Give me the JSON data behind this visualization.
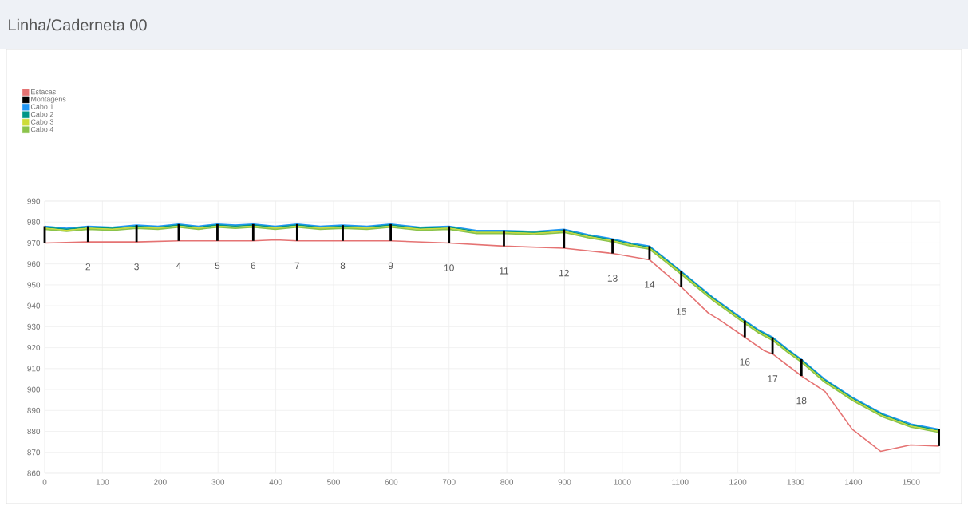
{
  "chart_data": {
    "type": "line",
    "title": "Linha/Caderneta 00",
    "xlim": [
      0,
      1550
    ],
    "ylim": [
      860,
      990
    ],
    "xticks": [
      0,
      100,
      200,
      300,
      400,
      500,
      600,
      700,
      800,
      900,
      1000,
      1100,
      1200,
      1300,
      1400,
      1500
    ],
    "yticks": [
      860,
      870,
      880,
      890,
      900,
      910,
      920,
      930,
      940,
      950,
      960,
      970,
      980,
      990
    ],
    "grid": true,
    "legend": "top left",
    "series": [
      {
        "name": "Estacas",
        "color": "#e57373",
        "x": [
          0,
          75,
          159,
          232,
          299,
          361,
          400,
          437,
          516,
          599,
          700,
          795,
          899,
          983,
          1047,
          1102,
          1149,
          1167,
          1212,
          1246,
          1260,
          1310,
          1351,
          1398,
          1447,
          1499,
          1548
        ],
        "values": [
          970,
          970.5,
          970.5,
          971,
          971,
          971,
          971.5,
          971,
          971,
          971,
          970,
          968.5,
          967.5,
          965,
          962,
          949,
          936.5,
          933.5,
          925,
          918.5,
          917,
          906.5,
          899,
          881,
          870.5,
          873.5,
          873
        ]
      },
      {
        "name": "Montagens",
        "type": "bar",
        "color": "#000000",
        "x": [
          0,
          75,
          159,
          232,
          299,
          361,
          437,
          516,
          599,
          700,
          795,
          899,
          983,
          1047,
          1102,
          1212,
          1260,
          1310,
          1548
        ],
        "base": [
          970,
          970.5,
          970.5,
          971,
          971,
          971,
          971,
          971,
          971,
          970,
          968.5,
          967.5,
          965,
          962,
          949,
          925,
          917,
          906.5,
          873
        ],
        "values": [
          8,
          7.5,
          8,
          8,
          8,
          8,
          8,
          7.5,
          8,
          8,
          7.5,
          9,
          7,
          6.5,
          7.5,
          8,
          8,
          8,
          8
        ]
      },
      {
        "name": "Cabo 1",
        "color": "#2196f3",
        "x": [
          0,
          38,
          75,
          117,
          159,
          196,
          232,
          266,
          299,
          330,
          361,
          399,
          437,
          477,
          516,
          558,
          599,
          650,
          700,
          748,
          795,
          847,
          899,
          941,
          983,
          1015,
          1047,
          1075,
          1102,
          1157,
          1212,
          1236,
          1260,
          1285,
          1310,
          1350,
          1400,
          1450,
          1500,
          1548
        ],
        "values": [
          978,
          977,
          978,
          977.5,
          978.5,
          978,
          979,
          978,
          979,
          978.5,
          979,
          978,
          979,
          978,
          978.5,
          978,
          979,
          977.5,
          978,
          976,
          976,
          975.5,
          976.5,
          974,
          972,
          970,
          968.5,
          962.5,
          956.5,
          944,
          933,
          928.5,
          925,
          919.5,
          914.5,
          905,
          896,
          888.5,
          883.5,
          881
        ]
      },
      {
        "name": "Cabo 2",
        "color": "#009688",
        "x": [
          0,
          38,
          75,
          117,
          159,
          196,
          232,
          266,
          299,
          330,
          361,
          399,
          437,
          477,
          516,
          558,
          599,
          650,
          700,
          748,
          795,
          847,
          899,
          941,
          983,
          1015,
          1047,
          1075,
          1102,
          1157,
          1212,
          1236,
          1260,
          1285,
          1310,
          1350,
          1400,
          1450,
          1500,
          1548
        ],
        "values": [
          977.5,
          976.5,
          977.5,
          977,
          978,
          977.5,
          978.5,
          977.5,
          978.5,
          978,
          978.5,
          977.5,
          978.5,
          977.5,
          978,
          977.5,
          978.5,
          977,
          977.5,
          975.5,
          975.5,
          975,
          976,
          973.5,
          971.5,
          969.5,
          968,
          962,
          956,
          943.5,
          932.5,
          928,
          924.5,
          919,
          914,
          904.5,
          895.5,
          888,
          883,
          880.5
        ]
      },
      {
        "name": "Cabo 3",
        "color": "#cddc39",
        "x": [
          0,
          38,
          75,
          117,
          159,
          196,
          232,
          266,
          299,
          330,
          361,
          399,
          437,
          477,
          516,
          558,
          599,
          650,
          700,
          748,
          795,
          847,
          899,
          941,
          983,
          1015,
          1047,
          1075,
          1102,
          1157,
          1212,
          1236,
          1260,
          1285,
          1310,
          1350,
          1400,
          1450,
          1500,
          1548
        ],
        "values": [
          977,
          976,
          977,
          976.5,
          977.5,
          977,
          978,
          977,
          978,
          977.5,
          978,
          977,
          978,
          977,
          977.5,
          977,
          978,
          976.5,
          977,
          975,
          975,
          974.5,
          975.5,
          973,
          971,
          969,
          967.5,
          961.5,
          955.5,
          943,
          932,
          927.5,
          924,
          918.5,
          913.5,
          904,
          895,
          887.5,
          882.5,
          880
        ]
      },
      {
        "name": "Cabo 4",
        "color": "#8bc34a",
        "x": [
          0,
          38,
          75,
          117,
          159,
          196,
          232,
          266,
          299,
          330,
          361,
          399,
          437,
          477,
          516,
          558,
          599,
          650,
          700,
          748,
          795,
          847,
          899,
          941,
          983,
          1015,
          1047,
          1075,
          1102,
          1157,
          1212,
          1236,
          1260,
          1285,
          1310,
          1350,
          1400,
          1450,
          1500,
          1548
        ],
        "values": [
          976.5,
          975.5,
          976.5,
          976,
          977,
          976.5,
          977.5,
          976.5,
          977.5,
          977,
          977.5,
          976.5,
          977.5,
          976.5,
          977,
          976.5,
          977.5,
          976,
          976.5,
          974.5,
          974.5,
          974,
          975,
          972.5,
          970.5,
          968.5,
          967,
          961,
          955,
          942.5,
          931.5,
          927,
          923.5,
          918,
          913,
          903.5,
          894.5,
          887,
          882,
          879.5
        ]
      }
    ],
    "annotations": [
      {
        "text": "2",
        "x": 75,
        "y": 970.5
      },
      {
        "text": "3",
        "x": 159,
        "y": 970.5
      },
      {
        "text": "4",
        "x": 232,
        "y": 971
      },
      {
        "text": "5",
        "x": 299,
        "y": 971
      },
      {
        "text": "6",
        "x": 361,
        "y": 971
      },
      {
        "text": "7",
        "x": 437,
        "y": 971
      },
      {
        "text": "8",
        "x": 516,
        "y": 971
      },
      {
        "text": "9",
        "x": 599,
        "y": 971
      },
      {
        "text": "10",
        "x": 700,
        "y": 970
      },
      {
        "text": "11",
        "x": 795,
        "y": 968.5
      },
      {
        "text": "12",
        "x": 899,
        "y": 967.5
      },
      {
        "text": "13",
        "x": 983,
        "y": 965
      },
      {
        "text": "14",
        "x": 1047,
        "y": 962
      },
      {
        "text": "15",
        "x": 1102,
        "y": 949
      },
      {
        "text": "16",
        "x": 1212,
        "y": 925
      },
      {
        "text": "17",
        "x": 1260,
        "y": 917
      },
      {
        "text": "18",
        "x": 1310,
        "y": 906.5
      }
    ]
  }
}
